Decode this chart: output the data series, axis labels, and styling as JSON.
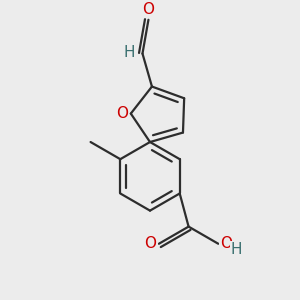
{
  "bg_color": "#ececec",
  "bond_color": "#2d2d2d",
  "bond_width": 1.6,
  "atom_colors": {
    "O": "#cc0000",
    "H": "#3a7070",
    "C": "#2d2d2d"
  },
  "font_size_atom": 11,
  "BL": 0.108
}
